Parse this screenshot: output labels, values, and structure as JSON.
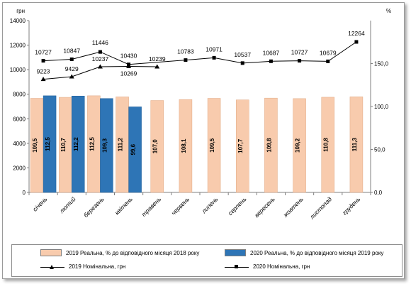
{
  "chart_data": {
    "type": "bar",
    "left_unit": "грн",
    "right_unit": "%",
    "left_ticks": [
      "0",
      "2000",
      "4000",
      "6000",
      "8000",
      "10000",
      "12000",
      "14000"
    ],
    "right_ticks": [
      "0,0",
      "50,0",
      "100,0",
      "150,0"
    ],
    "ylim_left": [
      0,
      14000
    ],
    "ylim_right": [
      0,
      200
    ],
    "categories": [
      "січень",
      "лютий",
      "березень",
      "квітень",
      "травень",
      "червень",
      "липень",
      "серпень",
      "вересень",
      "жовтень",
      "листопад",
      "грудень"
    ],
    "series": [
      {
        "name": "2019 Реальна, % до відповідного місяця 2018 року",
        "kind": "bar",
        "axis": "right",
        "color": "#f8cbad",
        "values": [
          109.5,
          110.7,
          112.5,
          111.2,
          107.0,
          108.1,
          109.5,
          107.7,
          109.8,
          109.2,
          110.8,
          111.3
        ],
        "labels": [
          "109,5",
          "110,7",
          "112,5",
          "111,2",
          "107,0",
          "108,1",
          "109,5",
          "107,7",
          "109,8",
          "109,2",
          "110,8",
          "111,3"
        ]
      },
      {
        "name": "2020 Реальна, % до відповідного місяця 2019 року",
        "kind": "bar",
        "axis": "right",
        "color": "#2e75b6",
        "values": [
          112.5,
          112.2,
          109.3,
          99.6,
          null,
          null,
          null,
          null,
          null,
          null,
          null,
          null
        ],
        "labels": [
          "112,5",
          "112,2",
          "109,3",
          "99,6",
          "",
          "",
          "",
          "",
          "",
          "",
          "",
          ""
        ]
      },
      {
        "name": "2019 Номінальна, грн",
        "kind": "line",
        "axis": "left",
        "marker": "triangle",
        "values": [
          9223,
          9429,
          10237,
          10269,
          10239,
          null,
          null,
          null,
          null,
          null,
          null,
          null
        ],
        "labels": [
          "9223",
          "9429",
          "10237",
          "10269",
          "10239",
          "",
          "",
          "",
          "",
          "",
          "",
          ""
        ]
      },
      {
        "name": "2020 Номінальна, грн",
        "kind": "line",
        "axis": "left",
        "marker": "square",
        "values": [
          10727,
          10847,
          11446,
          10430,
          null,
          10783,
          10971,
          10537,
          10687,
          10727,
          10679,
          12264
        ],
        "labels": [
          "10727",
          "10847",
          "11446",
          "10430",
          "",
          "10783",
          "10971",
          "10537",
          "10687",
          "10727",
          "10679",
          "12264"
        ]
      }
    ],
    "legend_position": "bottom",
    "grid": false
  },
  "legend": {
    "bar_2019": "2019 Реальна, % до відповідного місяця 2018 року",
    "bar_2020": "2020 Реальна, % до відповідного місяця 2019 року",
    "line_2019": "2019 Номінальна, грн",
    "line_2020": "2020 Номінальна, грн"
  }
}
